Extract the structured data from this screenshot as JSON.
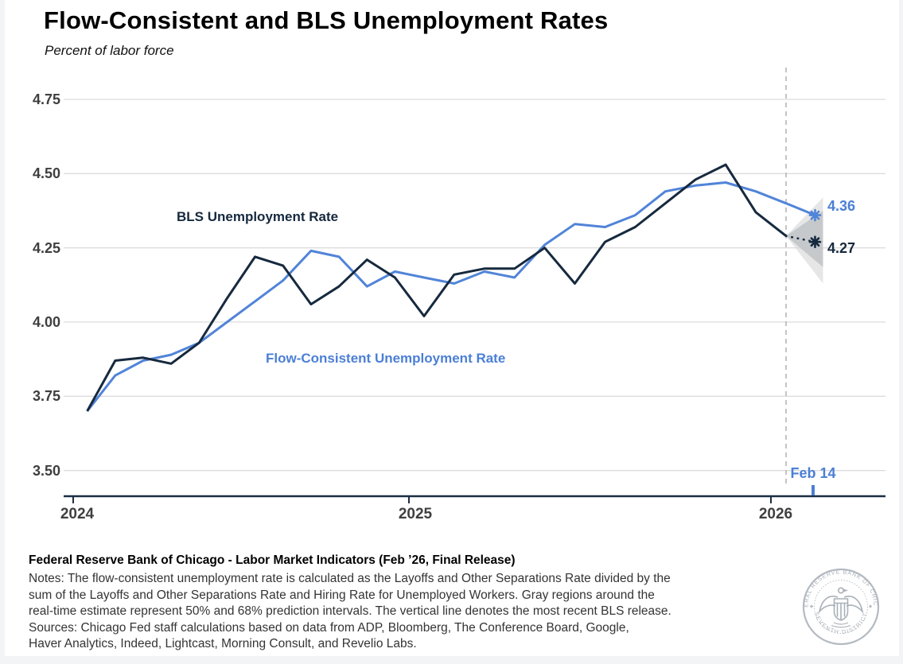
{
  "chart": {
    "title": "Flow-Consistent and BLS Unemployment Rates",
    "subtitle": "Percent of labor force",
    "y_ticks": [
      "4.75",
      "4.50",
      "4.25",
      "4.00",
      "3.75",
      "3.50"
    ],
    "x_ticks": [
      "2024",
      "2025",
      "2026"
    ],
    "series_labels": {
      "bls": "BLS Unemployment Rate",
      "flow": "Flow-Consistent Unemployment Rate"
    },
    "end_labels": {
      "flow": "4.36",
      "bls": "4.27"
    },
    "release_label": "Feb 14",
    "colors": {
      "bls_line": "#16293e",
      "flow_line": "#5184d8",
      "gridline": "#dcdcdc",
      "axis": "#1b2e44",
      "dashed_release_line": "#b5b5b5",
      "fan_outer": "#d8d8d8",
      "fan_inner": "#bfc3c6"
    }
  },
  "chart_data": {
    "type": "line",
    "x": [
      "2024-01",
      "2024-02",
      "2024-03",
      "2024-04",
      "2024-05",
      "2024-06",
      "2024-07",
      "2024-08",
      "2024-09",
      "2024-10",
      "2024-11",
      "2024-12",
      "2025-01",
      "2025-02",
      "2025-03",
      "2025-04",
      "2025-05",
      "2025-06",
      "2025-07",
      "2025-08",
      "2025-09",
      "2025-10",
      "2025-11",
      "2025-12",
      "2026-01"
    ],
    "series": [
      {
        "name": "BLS Unemployment Rate",
        "color": "#16293e",
        "values": [
          3.7,
          3.87,
          3.88,
          3.86,
          3.93,
          4.08,
          4.22,
          4.19,
          4.06,
          4.12,
          4.21,
          4.15,
          4.02,
          4.16,
          4.18,
          4.18,
          4.25,
          4.13,
          4.27,
          4.32,
          4.4,
          4.48,
          4.53,
          4.37,
          4.29
        ]
      },
      {
        "name": "Flow-Consistent Unemployment Rate",
        "color": "#5184d8",
        "values": [
          3.7,
          3.82,
          3.87,
          3.89,
          3.93,
          4.0,
          4.07,
          4.14,
          4.24,
          4.22,
          4.12,
          4.17,
          4.15,
          4.13,
          4.17,
          4.15,
          4.26,
          4.33,
          4.32,
          4.36,
          4.44,
          4.46,
          4.47,
          4.44,
          4.4
        ]
      }
    ],
    "nowcast": {
      "date_label": "Feb 14",
      "flow_estimate": 4.36,
      "bls_realtime_estimate": 4.27,
      "interval_50": [
        4.185,
        4.375
      ],
      "interval_68": [
        4.13,
        4.42
      ]
    },
    "release_line_x": "2026-01",
    "ylim": [
      3.5,
      4.75
    ],
    "ylabel": "Percent of labor force",
    "grid": "horizontal"
  },
  "footer": {
    "heading": "Federal Reserve Bank of Chicago - Labor Market Indicators (Feb ’26, Final Release)",
    "notes_lines": [
      "Notes: The flow-consistent unemployment rate is calculated as the Layoffs and Other Separations Rate divided by the",
      "sum of the Layoffs and Other Separations Rate and Hiring Rate for Unemployed Workers. Gray regions around the",
      "real-time estimate represent 50% and 68% prediction intervals. The vertical line denotes the most recent BLS release.",
      "Sources: Chicago Fed staff calculations based on data from ADP, Bloomberg, The Conference Board, Google,",
      "Haver Analytics, Indeed, Lightcast, Morning Consult, and Revelio Labs."
    ],
    "seal_text_top": "FEDERAL RESERVE BANK OF CHICAGO",
    "seal_text_bottom": "SEVENTH DISTRICT"
  }
}
